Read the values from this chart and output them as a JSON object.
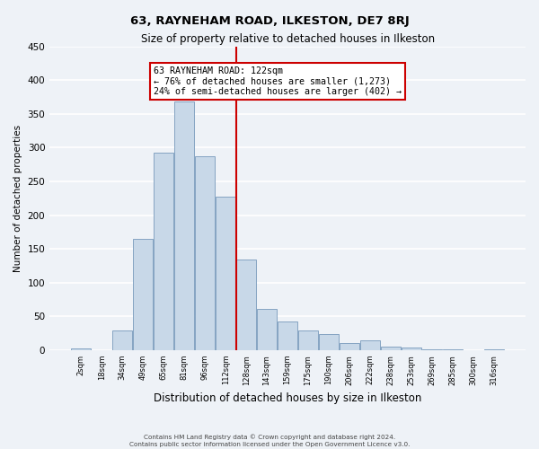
{
  "title": "63, RAYNEHAM ROAD, ILKESTON, DE7 8RJ",
  "subtitle": "Size of property relative to detached houses in Ilkeston",
  "xlabel": "Distribution of detached houses by size in Ilkeston",
  "ylabel": "Number of detached properties",
  "bin_labels": [
    "2sqm",
    "18sqm",
    "34sqm",
    "49sqm",
    "65sqm",
    "81sqm",
    "96sqm",
    "112sqm",
    "128sqm",
    "143sqm",
    "159sqm",
    "175sqm",
    "190sqm",
    "206sqm",
    "222sqm",
    "238sqm",
    "253sqm",
    "269sqm",
    "285sqm",
    "300sqm",
    "316sqm"
  ],
  "bar_values": [
    2,
    0,
    29,
    165,
    293,
    369,
    287,
    228,
    134,
    61,
    42,
    29,
    24,
    11,
    14,
    5,
    4,
    1,
    1,
    0,
    1
  ],
  "bar_color": "#c8d8e8",
  "bar_edge_color": "#7799bb",
  "vline_color": "#cc0000",
  "vline_x_index": 7,
  "annotation_title": "63 RAYNEHAM ROAD: 122sqm",
  "annotation_line1": "← 76% of detached houses are smaller (1,273)",
  "annotation_line2": "24% of semi-detached houses are larger (402) →",
  "annotation_box_color": "#ffffff",
  "annotation_box_edge_color": "#cc0000",
  "ylim": [
    0,
    450
  ],
  "yticks": [
    0,
    50,
    100,
    150,
    200,
    250,
    300,
    350,
    400,
    450
  ],
  "footer_line1": "Contains HM Land Registry data © Crown copyright and database right 2024.",
  "footer_line2": "Contains public sector information licensed under the Open Government Licence v3.0.",
  "bg_color": "#eef2f7",
  "plot_bg_color": "#eef2f7",
  "grid_color": "#ffffff"
}
